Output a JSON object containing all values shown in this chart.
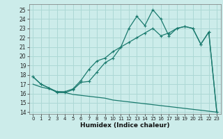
{
  "xlabel": "Humidex (Indice chaleur)",
  "bg_color": "#ccecea",
  "grid_color": "#add8d5",
  "line_color": "#1a7a6e",
  "xlim": [
    -0.5,
    23.5
  ],
  "ylim": [
    13.8,
    25.6
  ],
  "xticks": [
    0,
    1,
    2,
    3,
    4,
    5,
    6,
    7,
    8,
    9,
    10,
    11,
    12,
    13,
    14,
    15,
    16,
    17,
    18,
    19,
    20,
    21,
    22,
    23
  ],
  "yticks": [
    14,
    15,
    16,
    17,
    18,
    19,
    20,
    21,
    22,
    23,
    24,
    25
  ],
  "line1_x": [
    0,
    1,
    2,
    3,
    4,
    5,
    6,
    7,
    8,
    9,
    10,
    11,
    12,
    13,
    14,
    15,
    16,
    17,
    18,
    19,
    20,
    21,
    22,
    23
  ],
  "line1_y": [
    17.8,
    17.0,
    16.6,
    16.1,
    16.1,
    16.4,
    17.2,
    17.3,
    18.3,
    19.3,
    19.8,
    21.0,
    23.0,
    24.3,
    23.3,
    25.0,
    24.0,
    22.2,
    23.0,
    23.2,
    23.0,
    21.3,
    22.6,
    14.0
  ],
  "line2_x": [
    0,
    1,
    2,
    3,
    4,
    5,
    6,
    7,
    8,
    9,
    10,
    11,
    12,
    13,
    14,
    15,
    16,
    17,
    18,
    19,
    20,
    21,
    22,
    23
  ],
  "line2_y": [
    17.8,
    17.0,
    16.6,
    16.2,
    16.2,
    16.5,
    17.4,
    18.6,
    19.5,
    19.8,
    20.5,
    21.0,
    21.5,
    22.0,
    22.5,
    23.0,
    22.2,
    22.5,
    23.0,
    23.2,
    23.0,
    21.3,
    22.6,
    14.0
  ],
  "line3_x": [
    0,
    1,
    2,
    3,
    4,
    5,
    6,
    7,
    8,
    9,
    10,
    11,
    12,
    13,
    14,
    15,
    16,
    17,
    18,
    19,
    20,
    21,
    22,
    23
  ],
  "line3_y": [
    17.0,
    16.7,
    16.5,
    16.2,
    16.1,
    15.9,
    15.8,
    15.7,
    15.6,
    15.5,
    15.3,
    15.2,
    15.1,
    15.0,
    14.9,
    14.8,
    14.7,
    14.6,
    14.5,
    14.4,
    14.3,
    14.2,
    14.1,
    14.0
  ]
}
